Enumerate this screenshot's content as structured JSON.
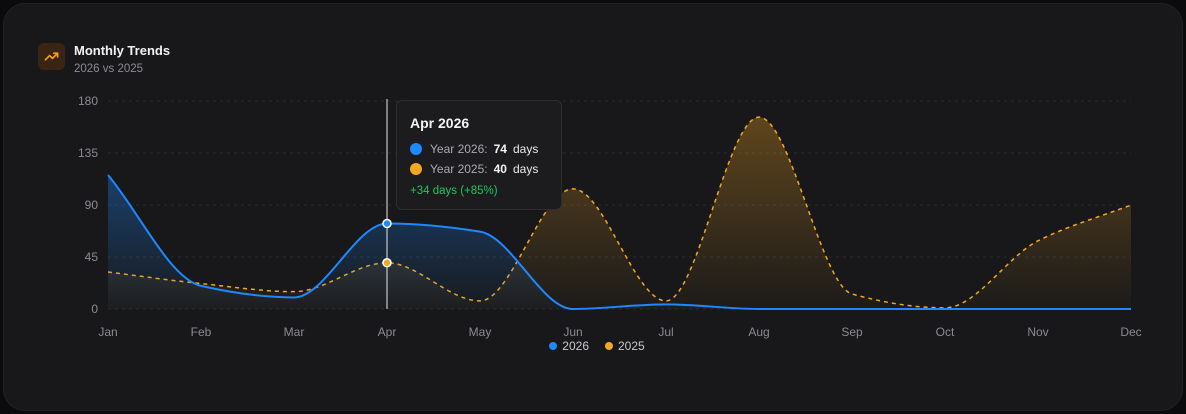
{
  "header": {
    "title": "Monthly Trends",
    "subtitle": "2026 vs 2025",
    "icon": "trending-up-icon",
    "icon_color": "#f59e0b"
  },
  "chart_data": {
    "type": "area",
    "categories": [
      "Jan",
      "Feb",
      "Mar",
      "Apr",
      "May",
      "Jun",
      "Jul",
      "Aug",
      "Sep",
      "Oct",
      "Nov",
      "Dec"
    ],
    "series": [
      {
        "name": "2026",
        "color": "#1e88ff",
        "line_style": "solid",
        "values": [
          116,
          20,
          10,
          74,
          67,
          0,
          4,
          0,
          0,
          0,
          0,
          0
        ]
      },
      {
        "name": "2025",
        "color": "#f5a623",
        "line_style": "dashed",
        "values": [
          32,
          22,
          15,
          40,
          7,
          104,
          7,
          166,
          13,
          1,
          59,
          90
        ]
      }
    ],
    "yticks": [
      0,
      45,
      90,
      135,
      180
    ],
    "ylim": [
      0,
      180
    ],
    "grid": true,
    "legend_position": "bottom-center",
    "tooltip": {
      "title": "Apr 2026",
      "rows": [
        {
          "label": "Year 2026:",
          "value": "74",
          "unit": "days",
          "color": "#1e88ff"
        },
        {
          "label": "Year 2025:",
          "value": "40",
          "unit": "days",
          "color": "#f5a623"
        }
      ],
      "delta": "+34 days (+85%)",
      "index": 3
    }
  }
}
